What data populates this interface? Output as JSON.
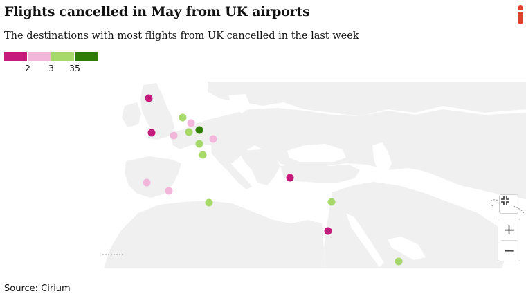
{
  "header": {
    "title": "Flights cancelled in May from UK airports",
    "subtitle": "The destinations with most flights from UK cancelled in the last week"
  },
  "legend": {
    "colors": [
      "#c51b7d",
      "#f1b6da",
      "#a6d96a",
      "#2f7d06"
    ],
    "ticks": [
      "2",
      "3",
      "35"
    ]
  },
  "markers": [
    {
      "name": "dot-scotland",
      "color": "#c51b7d"
    },
    {
      "name": "dot-wales",
      "color": "#c51b7d"
    },
    {
      "name": "dot-london",
      "color": "#f1b6da"
    },
    {
      "name": "dot-amsterdam",
      "color": "#a6d96a"
    },
    {
      "name": "dot-brussels",
      "color": "#a6d96a"
    },
    {
      "name": "dot-cologne",
      "color": "#f1b6da"
    },
    {
      "name": "dot-frankfurt",
      "color": "#2f7d06"
    },
    {
      "name": "dot-munich",
      "color": "#f1b6da"
    },
    {
      "name": "dot-basel",
      "color": "#a6d96a"
    },
    {
      "name": "dot-geneva",
      "color": "#a6d96a"
    },
    {
      "name": "dot-madrid",
      "color": "#f1b6da"
    },
    {
      "name": "dot-malaga",
      "color": "#f1b6da"
    },
    {
      "name": "dot-algiers",
      "color": "#a6d96a"
    },
    {
      "name": "dot-istanbul",
      "color": "#c51b7d"
    },
    {
      "name": "dot-cyprus",
      "color": "#a6d96a"
    },
    {
      "name": "dot-tel-aviv",
      "color": "#c51b7d"
    },
    {
      "name": "dot-gulf",
      "color": "#a6d96a"
    }
  ],
  "controls": {
    "fullscreen_icon": "collapse-icon",
    "zoom_in": "+",
    "zoom_out": "−"
  },
  "footer": {
    "source": "Source: Cirium"
  },
  "map_colors": {
    "land": "#f0f0f0",
    "sea": "#ffffff"
  }
}
